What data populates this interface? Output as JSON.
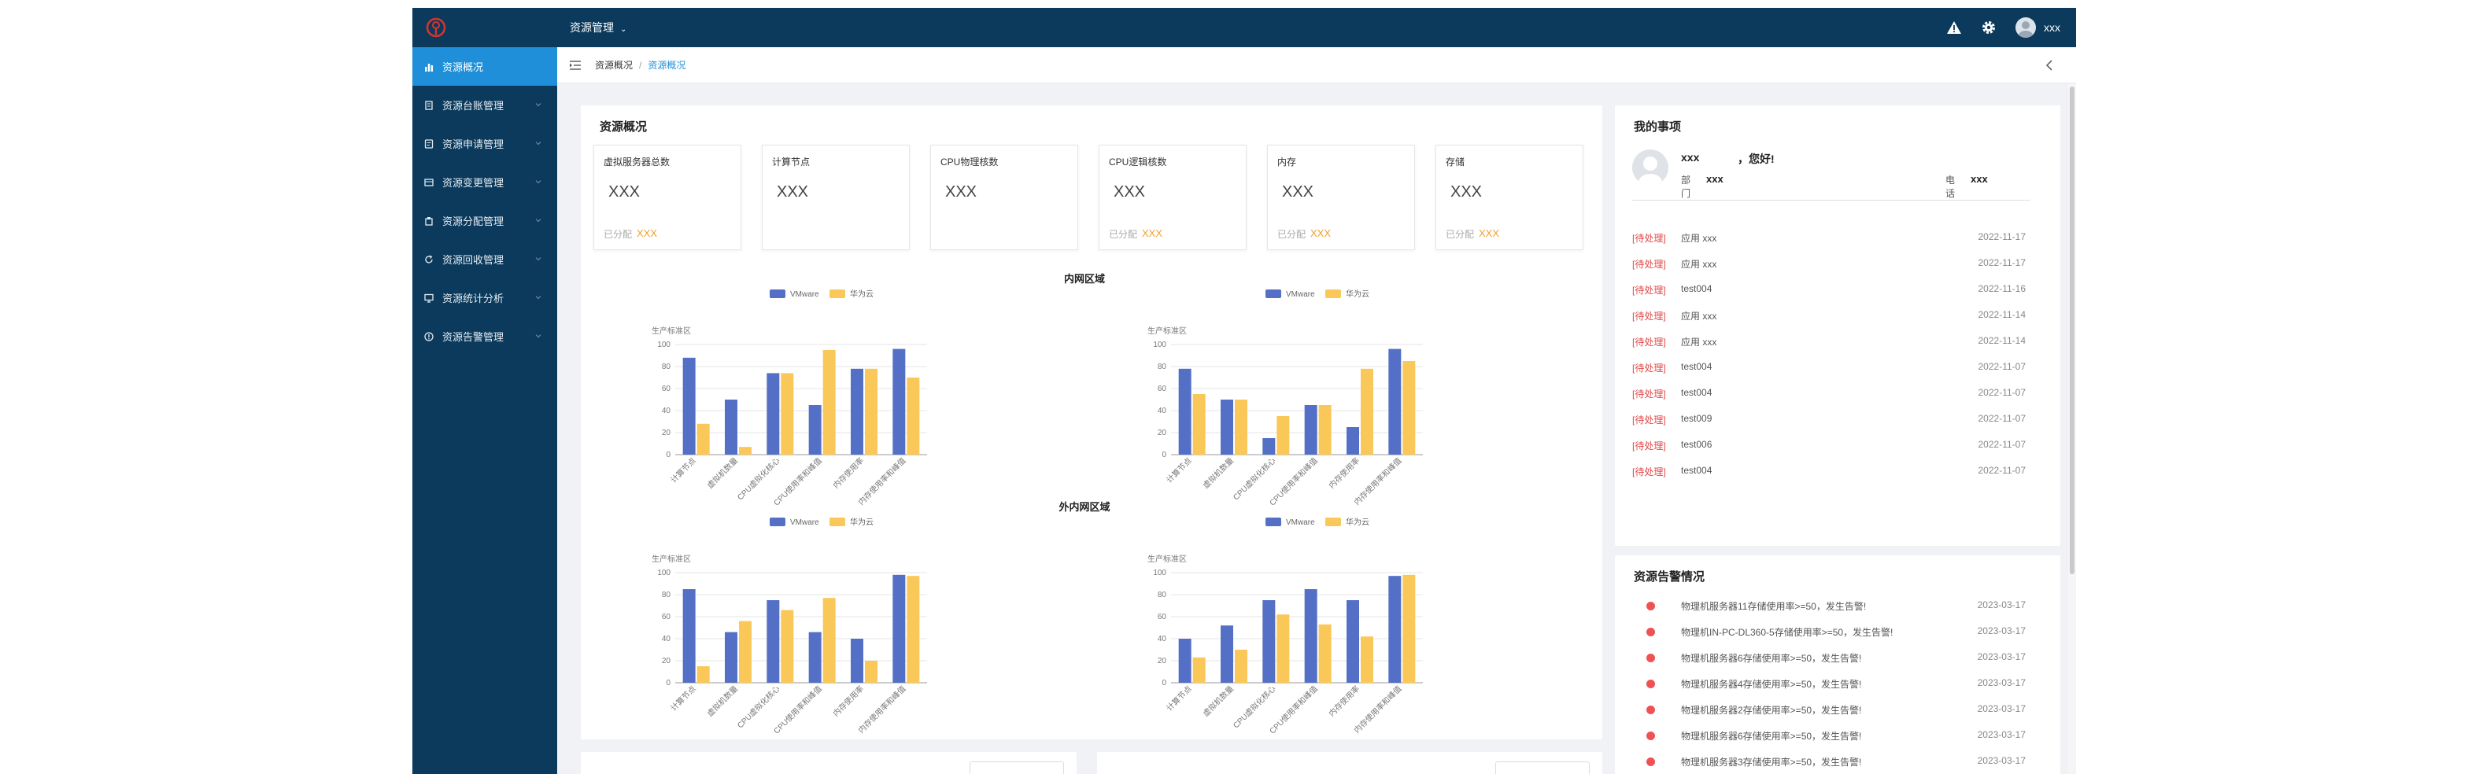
{
  "topbar": {
    "system_menu": "资源管理",
    "username": "xxx"
  },
  "sidebar": {
    "items": [
      {
        "label": "资源概况",
        "active": true,
        "icon": "bar-chart-icon"
      },
      {
        "label": "资源台账管理",
        "icon": "ledger-icon"
      },
      {
        "label": "资源申请管理",
        "icon": "apply-icon"
      },
      {
        "label": "资源变更管理",
        "icon": "change-icon"
      },
      {
        "label": "资源分配管理",
        "icon": "assign-icon"
      },
      {
        "label": "资源回收管理",
        "icon": "recycle-icon"
      },
      {
        "label": "资源统计分析",
        "icon": "monitor-icon"
      },
      {
        "label": "资源告警管理",
        "icon": "alert-circle-icon"
      }
    ]
  },
  "breadcrumb": {
    "parent": "资源概况",
    "current": "资源概况"
  },
  "overview": {
    "title": "资源概况",
    "cards": [
      {
        "label": "虚拟服务器总数",
        "value": "XXX",
        "allocated_label": "已分配",
        "allocated_value": "XXX"
      },
      {
        "label": "计算节点",
        "value": "XXX",
        "allocated_label": "",
        "allocated_value": ""
      },
      {
        "label": "CPU物理核数",
        "value": "XXX",
        "allocated_label": "",
        "allocated_value": ""
      },
      {
        "label": "CPU逻辑核数",
        "value": "XXX",
        "allocated_label": "已分配",
        "allocated_value": "XXX"
      },
      {
        "label": "内存",
        "value": "XXX",
        "allocated_label": "已分配",
        "allocated_value": "XXX"
      },
      {
        "label": "存储",
        "value": "XXX",
        "allocated_label": "已分配",
        "allocated_value": "XXX"
      }
    ],
    "region_inner": "内网区域",
    "region_outer": "外内网区域"
  },
  "chart_data": [
    {
      "type": "bar",
      "title": "生产标准区",
      "categories": [
        "计算节点",
        "虚拟机数量",
        "CPU虚拟化核心",
        "CPU使用率和峰值",
        "内存使用率",
        "内存使用率和峰值"
      ],
      "series": [
        {
          "name": "VMware",
          "values": [
            88,
            50,
            74,
            45,
            78,
            96
          ]
        },
        {
          "name": "华为云",
          "values": [
            28,
            7,
            74,
            95,
            78,
            70
          ]
        }
      ],
      "ylim": [
        0,
        100
      ],
      "yticks": [
        0,
        20,
        40,
        60,
        80,
        100
      ]
    },
    {
      "type": "bar",
      "title": "生产标准区",
      "categories": [
        "计算节点",
        "虚拟机数量",
        "CPU虚拟化核心",
        "CPU使用率和峰值",
        "内存使用率",
        "内存使用率和峰值"
      ],
      "series": [
        {
          "name": "VMware",
          "values": [
            78,
            50,
            15,
            45,
            25,
            96
          ]
        },
        {
          "name": "华为云",
          "values": [
            55,
            50,
            35,
            45,
            78,
            85
          ]
        }
      ],
      "ylim": [
        0,
        100
      ],
      "yticks": [
        0,
        20,
        40,
        60,
        80,
        100
      ]
    },
    {
      "type": "bar",
      "title": "生产标准区",
      "categories": [
        "计算节点",
        "虚拟机数量",
        "CPU虚拟化核心",
        "CPU使用率和峰值",
        "内存使用率",
        "内存使用率和峰值"
      ],
      "series": [
        {
          "name": "VMware",
          "values": [
            85,
            46,
            75,
            46,
            40,
            98
          ]
        },
        {
          "name": "华为云",
          "values": [
            15,
            56,
            66,
            77,
            20,
            97
          ]
        }
      ],
      "ylim": [
        0,
        100
      ],
      "yticks": [
        0,
        20,
        40,
        60,
        80,
        100
      ]
    },
    {
      "type": "bar",
      "title": "生产标准区",
      "categories": [
        "计算节点",
        "虚拟机数量",
        "CPU虚拟化核心",
        "CPU使用率和峰值",
        "内存使用率",
        "内存使用率和峰值"
      ],
      "series": [
        {
          "name": "VMware",
          "values": [
            40,
            52,
            75,
            85,
            75,
            97
          ]
        },
        {
          "name": "华为云",
          "values": [
            23,
            30,
            62,
            53,
            42,
            98
          ]
        }
      ],
      "ylim": [
        0,
        100
      ],
      "yticks": [
        0,
        20,
        40,
        60,
        80,
        100
      ]
    }
  ],
  "my_tasks": {
    "title": "我的事项",
    "greeting_name": "xxx",
    "greeting": "，您好!",
    "dept_label": "部门",
    "dept_value": "xxx",
    "phone_label": "电话",
    "phone_value": "xxx",
    "items": [
      {
        "tag": "[待处理]",
        "text": "应用   xxx",
        "date": "2022-11-17"
      },
      {
        "tag": "[待处理]",
        "text": "应用   xxx",
        "date": "2022-11-17"
      },
      {
        "tag": "[待处理]",
        "text": "test004",
        "date": "2022-11-16"
      },
      {
        "tag": "[待处理]",
        "text": "应用   xxx",
        "date": "2022-11-14"
      },
      {
        "tag": "[待处理]",
        "text": "应用   xxx",
        "date": "2022-11-14"
      },
      {
        "tag": "[待处理]",
        "text": "test004",
        "date": "2022-11-07"
      },
      {
        "tag": "[待处理]",
        "text": "test004",
        "date": "2022-11-07"
      },
      {
        "tag": "[待处理]",
        "text": "test009",
        "date": "2022-11-07"
      },
      {
        "tag": "[待处理]",
        "text": "test006",
        "date": "2022-11-07"
      },
      {
        "tag": "[待处理]",
        "text": "test004",
        "date": "2022-11-07"
      }
    ]
  },
  "alarms": {
    "title": "资源告警情况",
    "items": [
      {
        "text": "物理机服务器11存储使用率>=50，发生告警!",
        "date": "2023-03-17"
      },
      {
        "text": "物理机IN-PC-DL360-5存储使用率>=50，发生告警!",
        "date": "2023-03-17"
      },
      {
        "text": "物理机服务器6存储使用率>=50，发生告警!",
        "date": "2023-03-17"
      },
      {
        "text": "物理机服务器4存储使用率>=50，发生告警!",
        "date": "2023-03-17"
      },
      {
        "text": "物理机服务器2存储使用率>=50，发生告警!",
        "date": "2023-03-17"
      },
      {
        "text": "物理机服务器6存储使用率>=50，发生告警!",
        "date": "2023-03-17"
      },
      {
        "text": "物理机服务器3存储使用率>=50，发生告警!",
        "date": "2023-03-17"
      }
    ]
  },
  "colors": {
    "topbar": "#0b3a5c",
    "active": "#1e8fd8",
    "vmware": "#5470c6",
    "huawei": "#fac858",
    "alarm": "#ee5252",
    "pending": "#e04848"
  }
}
